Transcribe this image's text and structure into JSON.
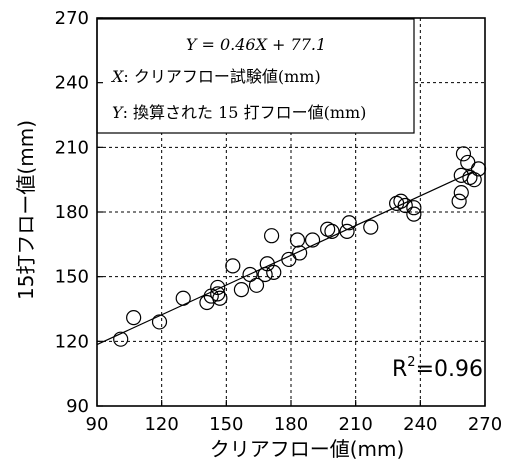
{
  "chart_data": {
    "type": "scatter",
    "title": "",
    "xlabel": "クリアフロー値(mm)",
    "ylabel": "15打フロー値(mm)",
    "xlim": [
      90,
      270
    ],
    "ylim": [
      90,
      270
    ],
    "xticks": [
      90,
      120,
      150,
      180,
      210,
      240,
      270
    ],
    "yticks": [
      90,
      120,
      150,
      180,
      210,
      240,
      270
    ],
    "grid": true,
    "marker": "open-circle",
    "regression": {
      "slope": 0.46,
      "intercept": 77.1
    },
    "annotation_lines": {
      "equation": "Y = 0.46X + 77.1",
      "x_prefix": "X",
      "x_desc": ": クリアフロー試験値(mm)",
      "y_prefix": "Y",
      "y_desc": ": 換算された 15 打フロー値(mm)"
    },
    "r2": {
      "label": "R",
      "sup": "2",
      "value": "=0.96"
    },
    "points": [
      {
        "x": 101,
        "y": 121
      },
      {
        "x": 107,
        "y": 131
      },
      {
        "x": 119,
        "y": 129
      },
      {
        "x": 130,
        "y": 140
      },
      {
        "x": 141,
        "y": 138
      },
      {
        "x": 143,
        "y": 141
      },
      {
        "x": 146,
        "y": 142
      },
      {
        "x": 146,
        "y": 145
      },
      {
        "x": 147,
        "y": 140
      },
      {
        "x": 153,
        "y": 155
      },
      {
        "x": 157,
        "y": 144
      },
      {
        "x": 161,
        "y": 151
      },
      {
        "x": 164,
        "y": 146
      },
      {
        "x": 168,
        "y": 151
      },
      {
        "x": 169,
        "y": 156
      },
      {
        "x": 171,
        "y": 169
      },
      {
        "x": 172,
        "y": 152
      },
      {
        "x": 179,
        "y": 158
      },
      {
        "x": 183,
        "y": 167
      },
      {
        "x": 184,
        "y": 161
      },
      {
        "x": 190,
        "y": 167
      },
      {
        "x": 197,
        "y": 172
      },
      {
        "x": 199,
        "y": 171
      },
      {
        "x": 206,
        "y": 171
      },
      {
        "x": 207,
        "y": 175
      },
      {
        "x": 217,
        "y": 173
      },
      {
        "x": 229,
        "y": 184
      },
      {
        "x": 231,
        "y": 185
      },
      {
        "x": 233,
        "y": 183
      },
      {
        "x": 237,
        "y": 182
      },
      {
        "x": 237,
        "y": 179
      },
      {
        "x": 258,
        "y": 185
      },
      {
        "x": 259,
        "y": 189
      },
      {
        "x": 259,
        "y": 197
      },
      {
        "x": 260,
        "y": 207
      },
      {
        "x": 262,
        "y": 203
      },
      {
        "x": 263,
        "y": 196
      },
      {
        "x": 265,
        "y": 195
      },
      {
        "x": 267,
        "y": 200
      }
    ]
  }
}
